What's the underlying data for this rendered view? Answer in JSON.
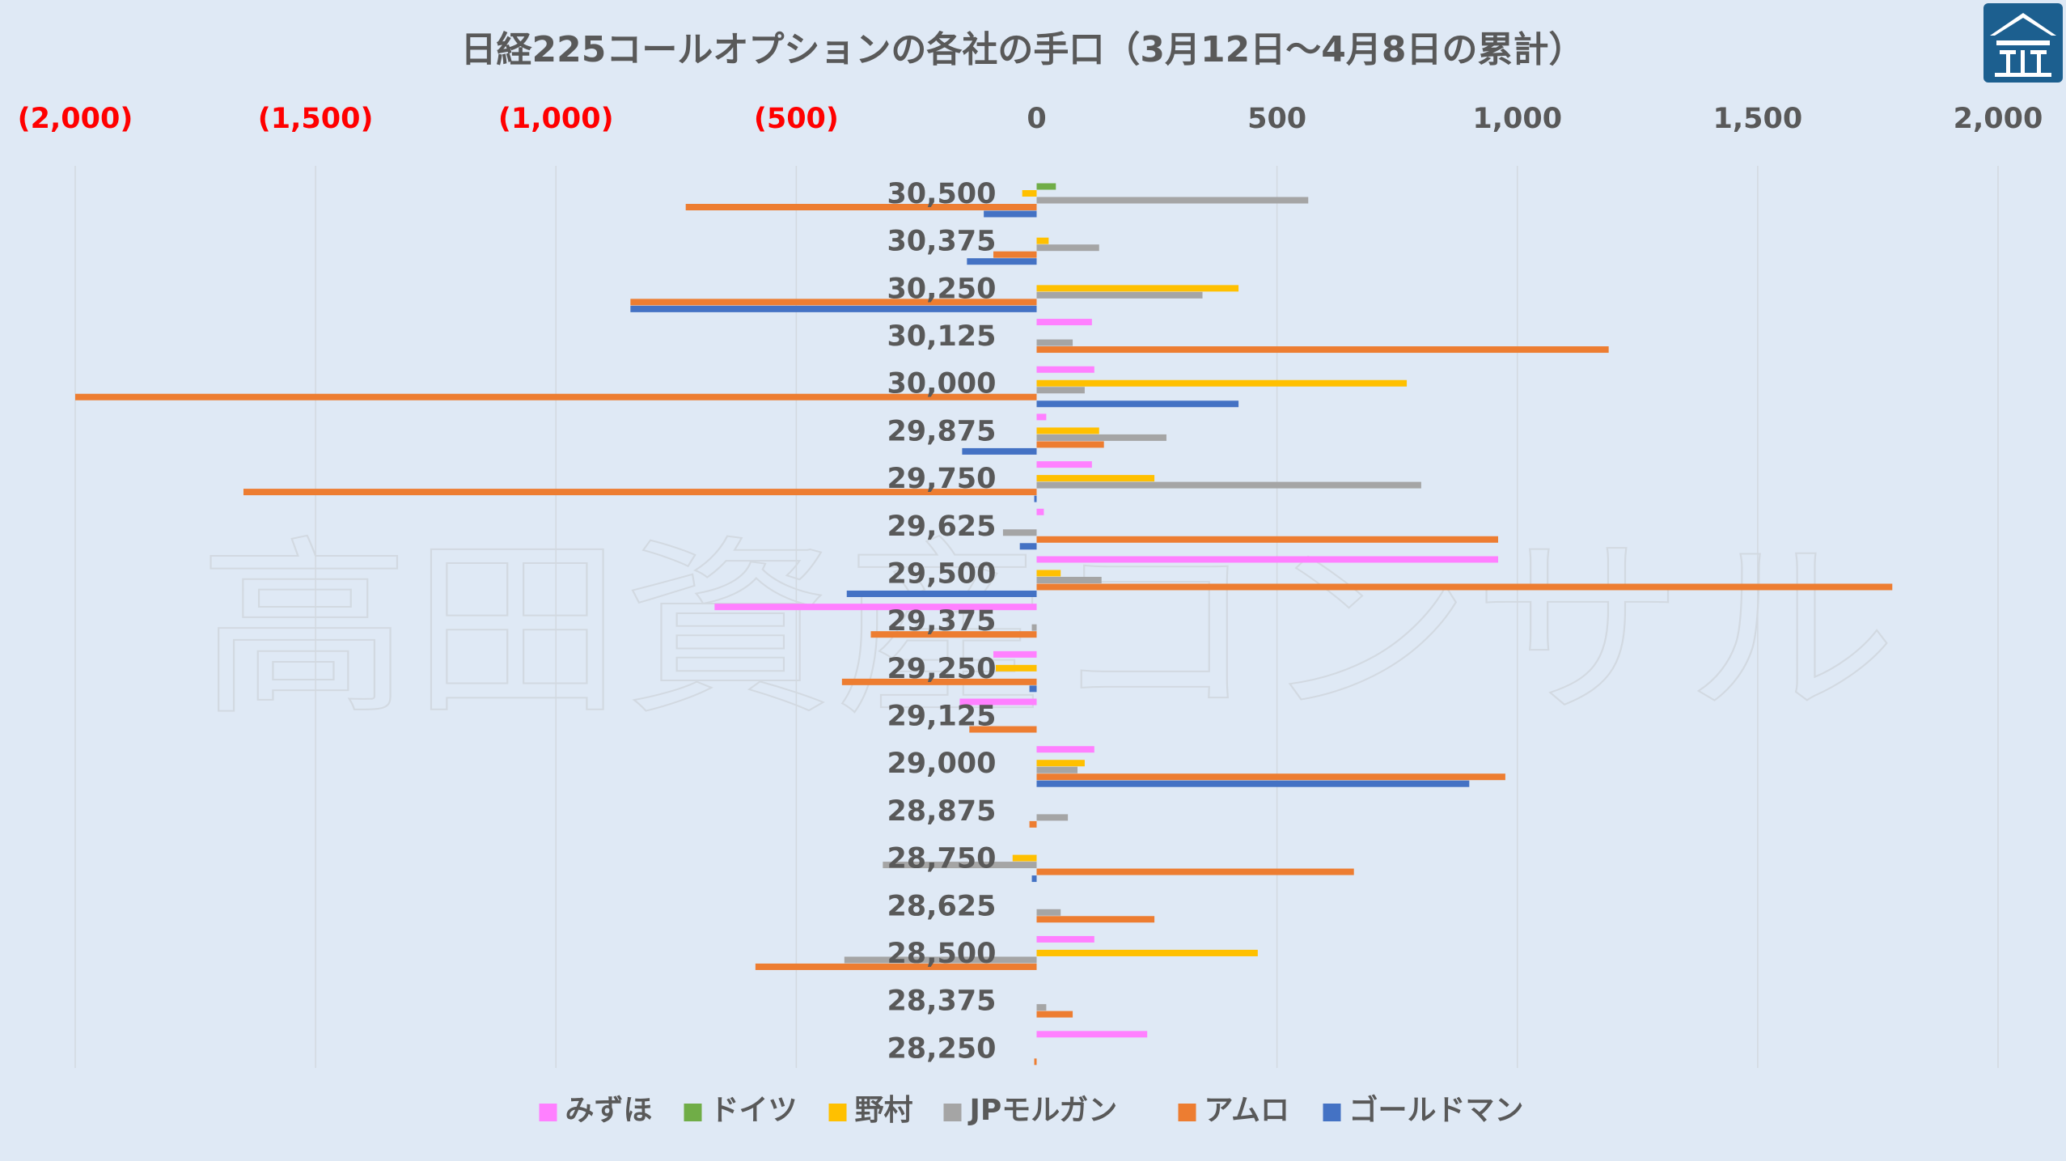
{
  "chart_data": {
    "type": "bar",
    "orientation": "horizontal",
    "title": "日経225コールオプションの各社の手口（3月12日～4月8日の累計）",
    "xlim": [
      -2000,
      2000
    ],
    "x_ticks": [
      -2000,
      -1500,
      -1000,
      -500,
      0,
      500,
      1000,
      1500,
      2000
    ],
    "x_tick_labels": [
      "(2,000)",
      "(1,500)",
      "(1,000)",
      "(500)",
      "0",
      "500",
      "1,000",
      "1,500",
      "2,000"
    ],
    "negative_tick_color": "#ff0000",
    "positive_tick_color": "#595959",
    "grid": true,
    "legend_position": "bottom",
    "categories": [
      "30,500",
      "30,375",
      "30,250",
      "30,125",
      "30,000",
      "29,875",
      "29,750",
      "29,625",
      "29,500",
      "29,375",
      "29,250",
      "29,125",
      "29,000",
      "28,875",
      "28,750",
      "28,625",
      "28,500",
      "28,375",
      "28,250"
    ],
    "series": [
      {
        "name": "みずほ",
        "color": "#ff80ff",
        "values": [
          0,
          0,
          0,
          115,
          120,
          20,
          115,
          15,
          960,
          -670,
          -90,
          -160,
          120,
          0,
          0,
          0,
          120,
          0,
          230
        ]
      },
      {
        "name": "ドイツ",
        "color": "#70ad47",
        "values": [
          40,
          0,
          0,
          0,
          0,
          0,
          0,
          0,
          0,
          0,
          0,
          0,
          0,
          0,
          0,
          0,
          0,
          0,
          0
        ]
      },
      {
        "name": "野村",
        "color": "#ffc000",
        "values": [
          -30,
          25,
          420,
          0,
          770,
          130,
          245,
          0,
          50,
          0,
          -85,
          0,
          100,
          0,
          -50,
          0,
          460,
          0,
          0
        ]
      },
      {
        "name": "JPモルガン",
        "color": "#a5a5a5",
        "values": [
          565,
          130,
          345,
          75,
          100,
          270,
          800,
          -70,
          135,
          -10,
          0,
          0,
          85,
          65,
          -320,
          50,
          -400,
          20,
          0
        ]
      },
      {
        "name": "アムロ",
        "color": "#ed7d31",
        "values": [
          -730,
          -90,
          -845,
          1190,
          -2000,
          140,
          -1650,
          960,
          1780,
          -345,
          -405,
          -140,
          975,
          -15,
          660,
          245,
          -585,
          75,
          -5
        ]
      },
      {
        "name": "ゴールドマン",
        "color": "#4472c4",
        "values": [
          -110,
          -145,
          -845,
          0,
          420,
          -155,
          -5,
          -35,
          -395,
          0,
          -15,
          0,
          900,
          0,
          -10,
          0,
          0,
          0,
          0
        ]
      }
    ]
  },
  "watermark": {
    "text": "高田資産コンサル"
  },
  "logo": {
    "name": "logo"
  }
}
